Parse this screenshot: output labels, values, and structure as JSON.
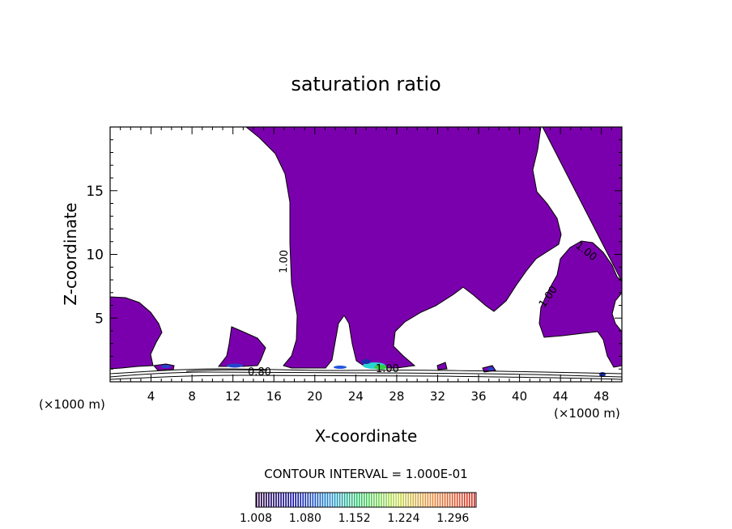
{
  "chart_data": {
    "type": "contour",
    "title": "saturation ratio",
    "xlabel": "X-coordinate",
    "ylabel": "Z-coordinate",
    "x_unit_left": "(×1000 m)",
    "x_unit_right": "(×1000 m)",
    "xlim": [
      0,
      50
    ],
    "ylim": [
      0,
      20
    ],
    "x_ticks": [
      "4",
      "8",
      "12",
      "16",
      "20",
      "24",
      "28",
      "32",
      "36",
      "40",
      "44",
      "48"
    ],
    "y_ticks": [
      "5",
      "10",
      "15"
    ],
    "contour_labels": [
      "1.00",
      "1.00",
      "1.00",
      "0.80",
      "1.00"
    ],
    "contour_interval_text": "CONTOUR INTERVAL = 1.000E-01",
    "colorbar_labels": [
      "1.008",
      "1.080",
      "1.152",
      "1.224",
      "1.296"
    ],
    "colorbar_range": [
      1.008,
      1.33
    ],
    "fill_color": "#7b00ad",
    "grid": false
  }
}
